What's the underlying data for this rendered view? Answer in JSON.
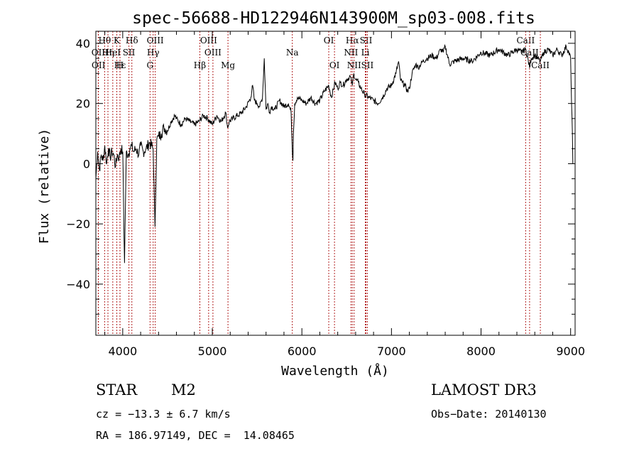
{
  "chart_data": {
    "type": "line",
    "title": "spec-56688-HD122946N143900M_sp03-008.fits",
    "xlabel": "Wavelength (Å)",
    "ylabel": "Flux (relative)",
    "xlim": [
      3700,
      9050
    ],
    "ylim": [
      -57,
      44
    ],
    "xticks": [
      4000,
      5000,
      6000,
      7000,
      8000,
      9000
    ],
    "yticks": [
      -40,
      -20,
      0,
      20,
      40
    ],
    "series": [
      {
        "name": "spectrum",
        "x": [
          3700,
          3720,
          3740,
          3760,
          3780,
          3800,
          3820,
          3840,
          3860,
          3880,
          3900,
          3920,
          3940,
          3960,
          3980,
          4000,
          4020,
          4040,
          4060,
          4080,
          4100,
          4120,
          4150,
          4180,
          4200,
          4230,
          4260,
          4300,
          4340,
          4360,
          4380,
          4400,
          4430,
          4460,
          4500,
          4540,
          4580,
          4600,
          4650,
          4700,
          4750,
          4800,
          4850,
          4900,
          4950,
          5000,
          5050,
          5100,
          5150,
          5170,
          5190,
          5230,
          5280,
          5330,
          5380,
          5430,
          5450,
          5470,
          5500,
          5530,
          5560,
          5580,
          5600,
          5620,
          5640,
          5660,
          5700,
          5750,
          5800,
          5850,
          5880,
          5895,
          5900,
          5905,
          5920,
          5950,
          6000,
          6050,
          6100,
          6150,
          6200,
          6250,
          6300,
          6330,
          6370,
          6400,
          6430,
          6460,
          6500,
          6540,
          6563,
          6580,
          6600,
          6630,
          6660,
          6700,
          6750,
          6800,
          6850,
          6900,
          6950,
          7000,
          7050,
          7080,
          7100,
          7120,
          7150,
          7180,
          7200,
          7230,
          7270,
          7300,
          7350,
          7400,
          7450,
          7500,
          7550,
          7580,
          7600,
          7650,
          7700,
          7800,
          7900,
          8000,
          8100,
          8200,
          8300,
          8400,
          8450,
          8500,
          8542,
          8560,
          8600,
          8662,
          8700,
          8750,
          8800,
          8850,
          8900,
          8950,
          8980,
          9000,
          9010,
          9020,
          9025
        ],
        "values": [
          -5,
          4,
          -2,
          3,
          1,
          6,
          0,
          5,
          2,
          4,
          3,
          -1,
          3,
          2,
          5,
          4,
          -33,
          4,
          3,
          5,
          6,
          4,
          5,
          3,
          6,
          4,
          5,
          7,
          5,
          -21,
          8,
          9,
          10,
          12,
          11,
          14,
          16,
          15,
          13,
          15,
          14,
          13,
          14,
          16,
          15,
          13,
          16,
          14,
          17,
          12,
          14,
          15,
          16,
          17,
          19,
          22,
          26,
          21,
          20,
          19,
          22,
          35,
          18,
          20,
          17,
          19,
          18,
          21,
          19,
          20,
          17,
          3,
          1,
          10,
          20,
          22,
          21,
          20,
          22,
          20,
          21,
          24,
          26,
          22,
          27,
          25,
          27,
          26,
          28,
          29,
          26,
          30,
          28,
          27,
          25,
          23,
          22,
          21,
          20,
          22,
          25,
          26,
          30,
          34,
          28,
          27,
          26,
          24,
          25,
          30,
          33,
          32,
          34,
          35,
          36,
          35,
          38,
          37,
          39,
          33,
          34,
          35,
          34,
          37,
          36,
          38,
          36,
          38,
          37,
          38,
          32,
          35,
          36,
          34,
          37,
          38,
          36,
          38,
          36,
          39,
          37,
          35,
          20,
          10,
          0
        ]
      }
    ],
    "line_markers": [
      {
        "label": "Hα",
        "wavelength": 6563,
        "row": 1
      },
      {
        "label": "Hβ",
        "wavelength": 4861,
        "row": 3
      },
      {
        "label": "Hγ",
        "wavelength": 4340,
        "row": 2
      },
      {
        "label": "Hδ",
        "wavelength": 4102,
        "row": 1
      },
      {
        "label": "Hε",
        "wavelength": 3970,
        "row": 3
      },
      {
        "label": "Hθ",
        "wavelength": 3798,
        "row": 1
      },
      {
        "label": "Hη",
        "wavelength": 3835,
        "row": 2
      },
      {
        "label": "K",
        "wavelength": 3934,
        "row": 1
      },
      {
        "label": "H",
        "wavelength": 3969,
        "row": 3
      },
      {
        "label": "G",
        "wavelength": 4305,
        "row": 3
      },
      {
        "label": "Mg",
        "wavelength": 5175,
        "row": 3
      },
      {
        "label": "Na",
        "wavelength": 5893,
        "row": 2
      },
      {
        "label": "OIII",
        "wavelength": 4363,
        "row": 1
      },
      {
        "label": "OIII",
        "wavelength": 4959,
        "row": 1
      },
      {
        "label": "OIII",
        "wavelength": 5007,
        "row": 2
      },
      {
        "label": "OII",
        "wavelength": 3727,
        "row": 2
      },
      {
        "label": "OII",
        "wavelength": 3729,
        "row": 3
      },
      {
        "label": "HeI",
        "wavelength": 3889,
        "row": 2
      },
      {
        "label": "SII",
        "wavelength": 4069,
        "row": 2
      },
      {
        "label": "OI",
        "wavelength": 6300,
        "row": 1
      },
      {
        "label": "OI",
        "wavelength": 6364,
        "row": 3
      },
      {
        "label": "NII",
        "wavelength": 6548,
        "row": 2
      },
      {
        "label": "NII",
        "wavelength": 6583,
        "row": 3
      },
      {
        "label": "SII",
        "wavelength": 6716,
        "row": 1
      },
      {
        "label": "SII",
        "wavelength": 6731,
        "row": 3
      },
      {
        "label": "Li",
        "wavelength": 6708,
        "row": 2
      },
      {
        "label": "CaII",
        "wavelength": 8498,
        "row": 1
      },
      {
        "label": "CaII",
        "wavelength": 8542,
        "row": 2
      },
      {
        "label": "CaII",
        "wavelength": 8662,
        "row": 3
      }
    ],
    "marker_color": "#b22222"
  },
  "info": {
    "object_class": "STAR",
    "subclass": "M2",
    "survey": "LAMOST DR3",
    "cz": "cz = −13.3 ± 6.7 km/s",
    "obs_date": "Obs−Date: 20140130",
    "coords": "RA = 186.97149, DEC =  14.08465"
  }
}
